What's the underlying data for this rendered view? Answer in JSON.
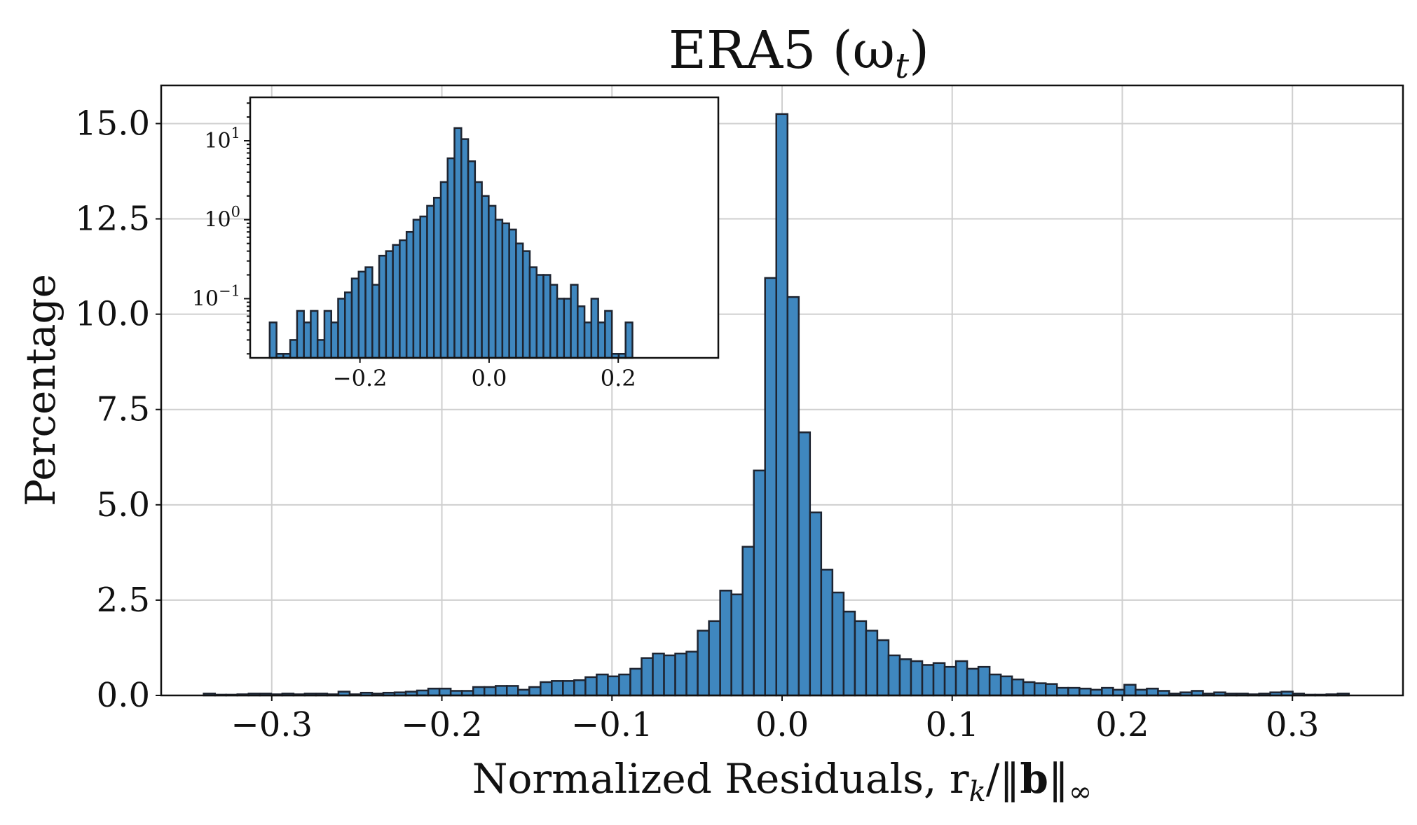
{
  "chart_data": {
    "type": "bar",
    "title": "ERA5 (ω",
    "title_sub": "t",
    "title_close": ")",
    "xlabel": "Normalized Residuals, r",
    "xlabel_sub": "k",
    "xlabel_mid": "/‖",
    "xlabel_bold": "b",
    "xlabel_end": "‖",
    "xlabel_sub2": "∞",
    "ylabel": "Percentage",
    "xlim": [
      -0.365,
      0.365
    ],
    "ylim": [
      0,
      16
    ],
    "grid": true,
    "bin_width": 0.0066,
    "x_ticks": [
      {
        "value": -0.3,
        "label": "−0.3"
      },
      {
        "value": -0.2,
        "label": "−0.2"
      },
      {
        "value": -0.1,
        "label": "−0.1"
      },
      {
        "value": 0.0,
        "label": "0.0"
      },
      {
        "value": 0.1,
        "label": "0.1"
      },
      {
        "value": 0.2,
        "label": "0.2"
      },
      {
        "value": 0.3,
        "label": "0.3"
      }
    ],
    "y_ticks": [
      {
        "value": 0,
        "label": "0.0"
      },
      {
        "value": 2.5,
        "label": "2.5"
      },
      {
        "value": 5,
        "label": "5.0"
      },
      {
        "value": 7.5,
        "label": "7.5"
      },
      {
        "value": 10,
        "label": "10.0"
      },
      {
        "value": 12.5,
        "label": "12.5"
      },
      {
        "value": 15,
        "label": "15.0"
      }
    ],
    "bin_centers": [
      -0.3367,
      -0.3301,
      -0.3235,
      -0.3169,
      -0.3103,
      -0.3037,
      -0.2971,
      -0.2905,
      -0.2839,
      -0.2773,
      -0.2707,
      -0.2641,
      -0.2575,
      -0.2509,
      -0.2443,
      -0.2377,
      -0.2311,
      -0.2245,
      -0.2179,
      -0.2113,
      -0.2047,
      -0.1981,
      -0.1915,
      -0.1849,
      -0.1783,
      -0.1717,
      -0.1651,
      -0.1585,
      -0.1519,
      -0.1453,
      -0.1387,
      -0.1321,
      -0.1255,
      -0.1189,
      -0.1123,
      -0.1057,
      -0.0991,
      -0.0925,
      -0.0859,
      -0.0793,
      -0.0727,
      -0.0661,
      -0.0595,
      -0.0529,
      -0.0463,
      -0.0397,
      -0.0331,
      -0.0265,
      -0.0199,
      -0.0133,
      -0.0067,
      -0.0001,
      0.0065,
      0.0131,
      0.0197,
      0.0263,
      0.0329,
      0.0395,
      0.0461,
      0.0527,
      0.0593,
      0.0659,
      0.0725,
      0.0791,
      0.0857,
      0.0923,
      0.0989,
      0.1055,
      0.1121,
      0.1187,
      0.1253,
      0.1319,
      0.1385,
      0.1451,
      0.1517,
      0.1583,
      0.1649,
      0.1715,
      0.1781,
      0.1847,
      0.1913,
      0.1979,
      0.2045,
      0.2111,
      0.2177,
      0.2243,
      0.2309,
      0.2375,
      0.2441,
      0.2507,
      0.2573,
      0.2639,
      0.2705,
      0.2771,
      0.2837,
      0.2903,
      0.2969,
      0.3035,
      0.3101,
      0.3167,
      0.3233,
      0.3299
    ],
    "values": [
      0.05,
      0.02,
      0.02,
      0.03,
      0.05,
      0.05,
      0.03,
      0.05,
      0.03,
      0.05,
      0.05,
      0.03,
      0.1,
      0.03,
      0.07,
      0.05,
      0.07,
      0.08,
      0.1,
      0.13,
      0.18,
      0.18,
      0.12,
      0.12,
      0.22,
      0.22,
      0.25,
      0.25,
      0.15,
      0.22,
      0.35,
      0.38,
      0.38,
      0.4,
      0.48,
      0.55,
      0.5,
      0.55,
      0.7,
      0.98,
      1.1,
      1.05,
      1.1,
      1.15,
      1.7,
      1.95,
      2.75,
      2.65,
      3.9,
      5.9,
      10.95,
      15.25,
      10.45,
      6.9,
      4.8,
      3.3,
      2.7,
      2.2,
      1.95,
      1.7,
      1.45,
      1.05,
      0.95,
      0.9,
      0.8,
      0.85,
      0.75,
      0.9,
      0.7,
      0.75,
      0.55,
      0.5,
      0.42,
      0.35,
      0.32,
      0.3,
      0.2,
      0.2,
      0.18,
      0.15,
      0.2,
      0.15,
      0.28,
      0.15,
      0.18,
      0.12,
      0.05,
      0.08,
      0.12,
      0.05,
      0.08,
      0.05,
      0.05,
      0.03,
      0.05,
      0.08,
      0.1,
      0.05,
      0.02,
      0.02,
      0.03,
      0.05
    ],
    "inset": {
      "yscale": "log",
      "xlim": [
        -0.37,
        0.355
      ],
      "ylim_log10": [
        -1.75,
        1.55
      ],
      "x_ticks": [
        {
          "value": -0.2,
          "label": "−0.2"
        },
        {
          "value": 0.0,
          "label": "0.0"
        },
        {
          "value": 0.2,
          "label": "0.2"
        }
      ],
      "y_ticks": [
        {
          "value": 10,
          "base": "10",
          "exp": "1"
        },
        {
          "value": 1,
          "base": "10",
          "exp": "0"
        },
        {
          "value": 0.1,
          "base": "10",
          "exp": "−1"
        }
      ],
      "bin_width": 0.0106,
      "bin_start": -0.3398,
      "values": [
        0.05,
        0.02,
        0.02,
        0.03,
        0.07,
        0.05,
        0.07,
        0.03,
        0.07,
        0.05,
        0.1,
        0.12,
        0.18,
        0.22,
        0.25,
        0.15,
        0.35,
        0.4,
        0.48,
        0.55,
        0.7,
        1.0,
        1.1,
        1.5,
        1.9,
        3.0,
        6.0,
        14.5,
        10.5,
        5.5,
        3.0,
        2.0,
        1.5,
        1.0,
        0.9,
        0.75,
        0.5,
        0.4,
        0.25,
        0.2,
        0.2,
        0.15,
        0.1,
        0.1,
        0.15,
        0.08,
        0.05,
        0.1,
        0.05,
        0.07,
        0.02,
        0.02,
        0.05
      ]
    }
  }
}
